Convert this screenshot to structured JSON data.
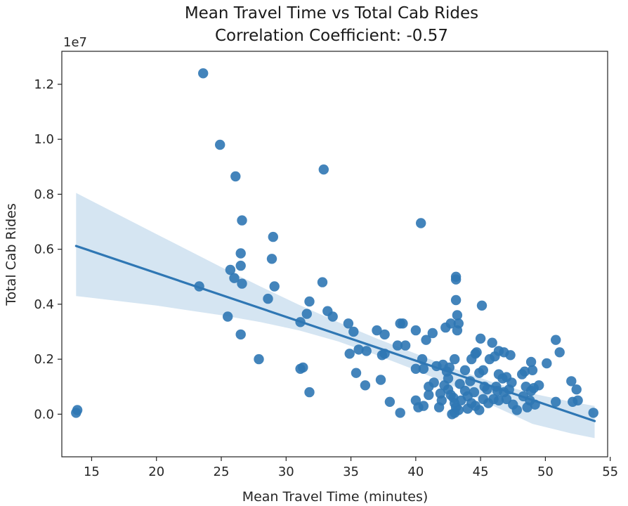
{
  "chart_data": {
    "type": "scatter",
    "title": "Mean Travel Time vs Total Cab Rides",
    "subtitle": "Correlation Coefficient: -0.57",
    "xlabel": "Mean Travel Time (minutes)",
    "ylabel": "Total Cab Rides",
    "y_offset_label": "1e7",
    "xlim": [
      12.7,
      54.8
    ],
    "ylim": [
      -1.55,
      13.2
    ],
    "x_ticks": [
      15,
      20,
      25,
      30,
      35,
      40,
      45,
      50,
      55
    ],
    "y_ticks": [
      0.0,
      0.2,
      0.4,
      0.6,
      0.8,
      1.0,
      1.2
    ],
    "y_tick_labels": [
      "0.0",
      "0.2",
      "0.4",
      "0.6",
      "0.8",
      "1.0",
      "1.2"
    ],
    "y_scale_note": "y values in units of 1e6 (axis labels ×1e7)",
    "grid": false,
    "colors": {
      "points": "#2f77b4",
      "line": "#2f77b4",
      "band": "#c7dcee"
    },
    "regression": {
      "x": [
        13.8,
        53.8
      ],
      "y": [
        6.12,
        -0.25
      ]
    },
    "confidence_band": {
      "x": [
        13.8,
        20,
        25,
        28,
        31,
        34,
        37,
        40,
        43,
        46,
        49,
        52,
        53.8
      ],
      "upper": [
        8.05,
        6.55,
        5.35,
        4.65,
        3.98,
        3.35,
        2.75,
        2.2,
        1.65,
        1.15,
        0.75,
        0.45,
        0.3
      ],
      "lower": [
        4.3,
        3.95,
        3.6,
        3.35,
        3.05,
        2.65,
        2.15,
        1.6,
        1.0,
        0.3,
        -0.35,
        -0.7,
        -0.87
      ]
    },
    "points": [
      [
        13.8,
        0.05
      ],
      [
        13.9,
        0.15
      ],
      [
        23.6,
        12.4
      ],
      [
        24.9,
        9.8
      ],
      [
        26.1,
        8.65
      ],
      [
        26.6,
        7.05
      ],
      [
        26.5,
        5.85
      ],
      [
        26.5,
        5.4
      ],
      [
        25.7,
        5.25
      ],
      [
        26.0,
        4.95
      ],
      [
        26.6,
        4.75
      ],
      [
        23.3,
        4.65
      ],
      [
        25.5,
        3.55
      ],
      [
        26.5,
        2.9
      ],
      [
        27.9,
        2.0
      ],
      [
        29.0,
        6.45
      ],
      [
        28.9,
        5.65
      ],
      [
        29.1,
        4.65
      ],
      [
        28.6,
        4.2
      ],
      [
        32.9,
        8.9
      ],
      [
        32.8,
        4.8
      ],
      [
        33.2,
        3.75
      ],
      [
        33.6,
        3.55
      ],
      [
        31.8,
        4.1
      ],
      [
        31.6,
        3.65
      ],
      [
        31.1,
        3.35
      ],
      [
        31.3,
        1.7
      ],
      [
        31.1,
        1.65
      ],
      [
        31.8,
        0.8
      ],
      [
        34.8,
        3.3
      ],
      [
        35.2,
        3.0
      ],
      [
        34.9,
        2.2
      ],
      [
        35.6,
        2.35
      ],
      [
        36.2,
        2.3
      ],
      [
        35.4,
        1.5
      ],
      [
        36.1,
        1.05
      ],
      [
        37.0,
        3.05
      ],
      [
        37.6,
        2.9
      ],
      [
        37.4,
        2.15
      ],
      [
        37.6,
        2.2
      ],
      [
        37.3,
        1.25
      ],
      [
        38.0,
        0.45
      ],
      [
        38.6,
        2.5
      ],
      [
        38.8,
        3.3
      ],
      [
        39.0,
        3.3
      ],
      [
        39.2,
        2.5
      ],
      [
        38.8,
        0.05
      ],
      [
        40.4,
        6.95
      ],
      [
        40.0,
        3.05
      ],
      [
        40.8,
        2.7
      ],
      [
        41.3,
        2.95
      ],
      [
        40.5,
        2.0
      ],
      [
        40.0,
        1.65
      ],
      [
        40.6,
        1.65
      ],
      [
        41.0,
        1.0
      ],
      [
        41.4,
        1.15
      ],
      [
        40.0,
        0.5
      ],
      [
        40.2,
        0.25
      ],
      [
        40.6,
        0.3
      ],
      [
        41.0,
        0.7
      ],
      [
        41.6,
        1.75
      ],
      [
        42.1,
        1.8
      ],
      [
        42.4,
        1.55
      ],
      [
        42.3,
        3.15
      ],
      [
        42.7,
        3.3
      ],
      [
        42.0,
        0.5
      ],
      [
        41.8,
        0.25
      ],
      [
        43.1,
        5.0
      ],
      [
        43.1,
        4.9
      ],
      [
        43.1,
        4.15
      ],
      [
        43.2,
        3.6
      ],
      [
        43.3,
        3.3
      ],
      [
        43.2,
        3.05
      ],
      [
        45.1,
        3.95
      ],
      [
        45.0,
        2.75
      ],
      [
        44.3,
        2.0
      ],
      [
        44.6,
        2.2
      ],
      [
        44.7,
        2.25
      ],
      [
        44.9,
        1.5
      ],
      [
        45.2,
        1.6
      ],
      [
        43.8,
        1.6
      ],
      [
        43.0,
        2.0
      ],
      [
        42.6,
        1.7
      ],
      [
        43.4,
        1.1
      ],
      [
        44.2,
        1.2
      ],
      [
        44.5,
        0.8
      ],
      [
        45.3,
        1.0
      ],
      [
        42.5,
        0.9
      ],
      [
        42.7,
        0.7
      ],
      [
        42.9,
        0.6
      ],
      [
        43.0,
        0.4
      ],
      [
        43.1,
        0.25
      ],
      [
        43.3,
        0.15
      ],
      [
        43.0,
        0.05
      ],
      [
        42.8,
        0.0
      ],
      [
        43.5,
        0.5
      ],
      [
        43.8,
        0.85
      ],
      [
        44.0,
        0.65
      ],
      [
        44.3,
        0.4
      ],
      [
        44.6,
        0.3
      ],
      [
        44.9,
        0.15
      ],
      [
        45.2,
        0.55
      ],
      [
        45.5,
        0.9
      ],
      [
        42.2,
        1.05
      ],
      [
        42.5,
        1.3
      ],
      [
        41.9,
        0.75
      ],
      [
        44.0,
        0.2
      ],
      [
        45.9,
        2.6
      ],
      [
        45.7,
        2.0
      ],
      [
        46.1,
        2.1
      ],
      [
        46.4,
        2.3
      ],
      [
        46.8,
        2.25
      ],
      [
        47.3,
        2.15
      ],
      [
        46.4,
        1.45
      ],
      [
        46.7,
        1.3
      ],
      [
        47.0,
        1.35
      ],
      [
        47.4,
        1.15
      ],
      [
        46.3,
        0.85
      ],
      [
        46.8,
        0.8
      ],
      [
        46.0,
        0.55
      ],
      [
        46.4,
        0.5
      ],
      [
        47.0,
        0.55
      ],
      [
        47.5,
        0.35
      ],
      [
        47.8,
        0.15
      ],
      [
        45.6,
        0.4
      ],
      [
        46.2,
        1.0
      ],
      [
        47.2,
        0.9
      ],
      [
        48.4,
        1.55
      ],
      [
        48.9,
        1.9
      ],
      [
        49.0,
        1.6
      ],
      [
        48.2,
        1.45
      ],
      [
        48.5,
        1.0
      ],
      [
        48.9,
        0.85
      ],
      [
        49.1,
        0.95
      ],
      [
        49.5,
        1.05
      ],
      [
        48.3,
        0.65
      ],
      [
        48.8,
        0.5
      ],
      [
        49.2,
        0.35
      ],
      [
        48.6,
        0.25
      ],
      [
        50.1,
        1.85
      ],
      [
        50.8,
        2.7
      ],
      [
        51.1,
        2.25
      ],
      [
        50.8,
        0.45
      ],
      [
        52.0,
        1.2
      ],
      [
        52.4,
        0.9
      ],
      [
        52.1,
        0.45
      ],
      [
        52.5,
        0.5
      ],
      [
        53.7,
        0.05
      ]
    ]
  }
}
